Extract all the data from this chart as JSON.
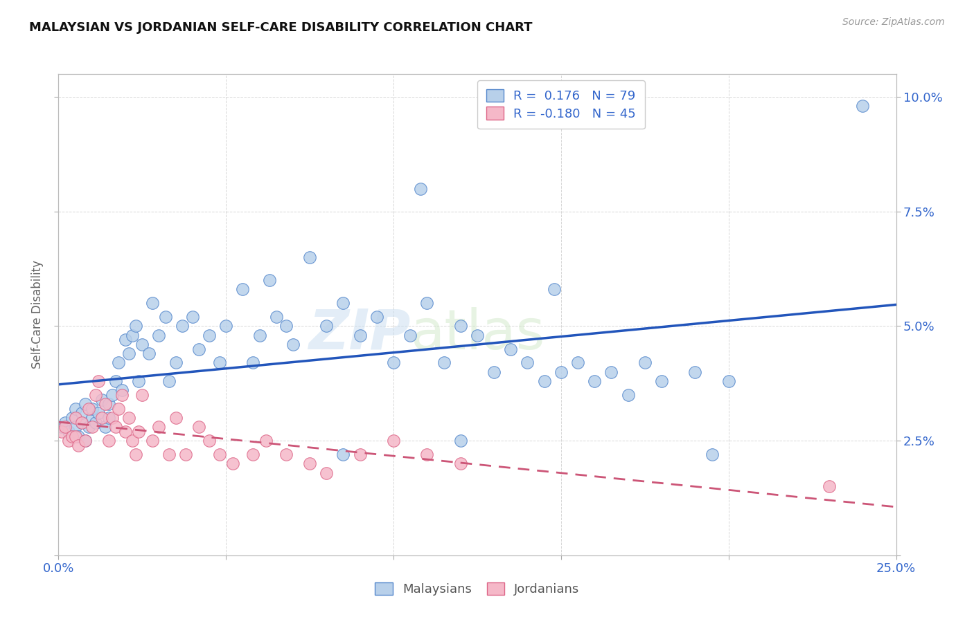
{
  "title": "MALAYSIAN VS JORDANIAN SELF-CARE DISABILITY CORRELATION CHART",
  "source": "Source: ZipAtlas.com",
  "ylabel": "Self-Care Disability",
  "xlim": [
    0.0,
    0.25
  ],
  "ylim": [
    0.0,
    0.105
  ],
  "xtick_positions": [
    0.0,
    0.05,
    0.1,
    0.15,
    0.2,
    0.25
  ],
  "xtick_labels": [
    "0.0%",
    "",
    "",
    "",
    "",
    "25.0%"
  ],
  "ytick_positions": [
    0.0,
    0.025,
    0.05,
    0.075,
    0.1
  ],
  "ytick_labels": [
    "",
    "2.5%",
    "5.0%",
    "7.5%",
    "10.0%"
  ],
  "malaysian_fill": "#b8d0ea",
  "malaysian_edge": "#5588cc",
  "jordanian_fill": "#f5b8c8",
  "jordanian_edge": "#dd6688",
  "malaysian_line_color": "#2255bb",
  "jordanian_line_color": "#cc5577",
  "R_malaysian": 0.176,
  "N_malaysian": 79,
  "R_jordanian": -0.18,
  "N_jordanian": 45,
  "watermark_zip": "ZIP",
  "watermark_atlas": "atlas",
  "malaysians_x": [
    0.001,
    0.002,
    0.003,
    0.004,
    0.005,
    0.005,
    0.006,
    0.007,
    0.007,
    0.008,
    0.008,
    0.009,
    0.01,
    0.01,
    0.011,
    0.012,
    0.013,
    0.014,
    0.015,
    0.015,
    0.016,
    0.017,
    0.018,
    0.019,
    0.02,
    0.021,
    0.022,
    0.023,
    0.024,
    0.025,
    0.027,
    0.028,
    0.03,
    0.032,
    0.033,
    0.035,
    0.037,
    0.04,
    0.042,
    0.045,
    0.048,
    0.05,
    0.055,
    0.058,
    0.06,
    0.063,
    0.065,
    0.068,
    0.07,
    0.075,
    0.08,
    0.085,
    0.09,
    0.095,
    0.1,
    0.105,
    0.11,
    0.115,
    0.12,
    0.125,
    0.13,
    0.135,
    0.14,
    0.145,
    0.15,
    0.155,
    0.16,
    0.165,
    0.17,
    0.175,
    0.18,
    0.19,
    0.2,
    0.108,
    0.148,
    0.195,
    0.24,
    0.085,
    0.12
  ],
  "malaysians_y": [
    0.028,
    0.029,
    0.027,
    0.03,
    0.028,
    0.032,
    0.026,
    0.029,
    0.031,
    0.025,
    0.033,
    0.028,
    0.03,
    0.032,
    0.029,
    0.031,
    0.034,
    0.028,
    0.03,
    0.033,
    0.035,
    0.038,
    0.042,
    0.036,
    0.047,
    0.044,
    0.048,
    0.05,
    0.038,
    0.046,
    0.044,
    0.055,
    0.048,
    0.052,
    0.038,
    0.042,
    0.05,
    0.052,
    0.045,
    0.048,
    0.042,
    0.05,
    0.058,
    0.042,
    0.048,
    0.06,
    0.052,
    0.05,
    0.046,
    0.065,
    0.05,
    0.055,
    0.048,
    0.052,
    0.042,
    0.048,
    0.055,
    0.042,
    0.05,
    0.048,
    0.04,
    0.045,
    0.042,
    0.038,
    0.04,
    0.042,
    0.038,
    0.04,
    0.035,
    0.042,
    0.038,
    0.04,
    0.038,
    0.08,
    0.058,
    0.022,
    0.098,
    0.022,
    0.025
  ],
  "jordanians_x": [
    0.001,
    0.002,
    0.003,
    0.004,
    0.005,
    0.005,
    0.006,
    0.007,
    0.008,
    0.009,
    0.01,
    0.011,
    0.012,
    0.013,
    0.014,
    0.015,
    0.016,
    0.017,
    0.018,
    0.019,
    0.02,
    0.021,
    0.022,
    0.023,
    0.024,
    0.025,
    0.028,
    0.03,
    0.033,
    0.035,
    0.038,
    0.042,
    0.045,
    0.048,
    0.052,
    0.058,
    0.062,
    0.068,
    0.075,
    0.08,
    0.09,
    0.1,
    0.11,
    0.12,
    0.23
  ],
  "jordanians_y": [
    0.027,
    0.028,
    0.025,
    0.026,
    0.03,
    0.026,
    0.024,
    0.029,
    0.025,
    0.032,
    0.028,
    0.035,
    0.038,
    0.03,
    0.033,
    0.025,
    0.03,
    0.028,
    0.032,
    0.035,
    0.027,
    0.03,
    0.025,
    0.022,
    0.027,
    0.035,
    0.025,
    0.028,
    0.022,
    0.03,
    0.022,
    0.028,
    0.025,
    0.022,
    0.02,
    0.022,
    0.025,
    0.022,
    0.02,
    0.018,
    0.022,
    0.025,
    0.022,
    0.02,
    0.015
  ]
}
